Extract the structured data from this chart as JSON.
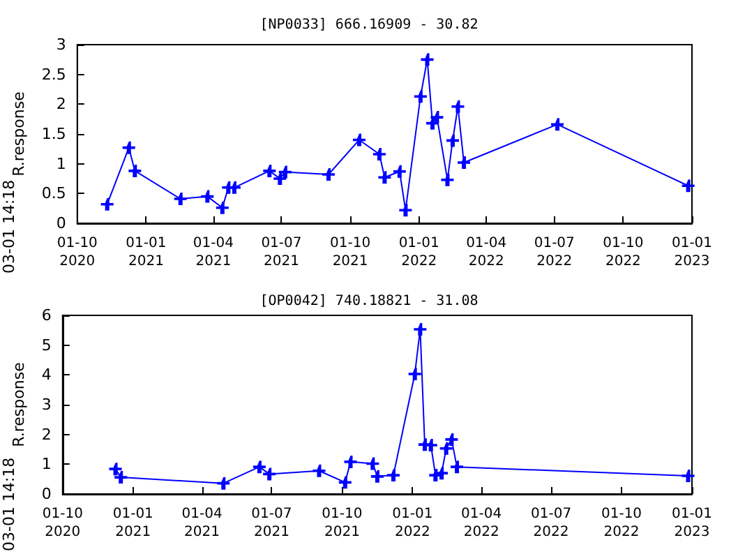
{
  "chart_data": [
    {
      "type": "line",
      "title": "[NP0033] 666.16909 - 30.82",
      "ylabel": "R.response",
      "annotations": [
        "03-01 14:18"
      ],
      "marker": "cross",
      "line_style": "solid",
      "x": [
        "2020-11-10",
        "2020-12-09",
        "2020-12-17",
        "2021-02-16",
        "2021-03-24",
        "2021-04-13",
        "2021-04-21",
        "2021-04-29",
        "2021-06-15",
        "2021-06-29",
        "2021-07-06",
        "2021-09-02",
        "2021-10-13",
        "2021-11-09",
        "2021-11-16",
        "2021-12-06",
        "2021-12-14",
        "2022-01-03",
        "2022-01-12",
        "2022-01-19",
        "2022-01-25",
        "2022-02-08",
        "2022-02-15",
        "2022-02-22",
        "2022-03-02",
        "2022-07-05",
        "2022-12-27"
      ],
      "series": [
        {
          "color": "#0000ff",
          "values": [
            0.32,
            1.27,
            0.88,
            0.41,
            0.45,
            0.26,
            0.6,
            0.6,
            0.88,
            0.75,
            0.86,
            0.82,
            1.4,
            1.16,
            0.77,
            0.87,
            0.22,
            2.13,
            2.75,
            1.68,
            1.78,
            0.73,
            1.39,
            1.96,
            1.02,
            1.66,
            0.63
          ]
        }
      ],
      "xlim": [
        "2020-10-01",
        "2023-01-01"
      ],
      "xticks": [
        {
          "value": "2020-10-01",
          "label": "01-10\n2020"
        },
        {
          "value": "2021-01-01",
          "label": "01-01\n2021"
        },
        {
          "value": "2021-04-01",
          "label": "01-04\n2021"
        },
        {
          "value": "2021-07-01",
          "label": "01-07\n2021"
        },
        {
          "value": "2021-10-01",
          "label": "01-10\n2021"
        },
        {
          "value": "2022-01-01",
          "label": "01-01\n2022"
        },
        {
          "value": "2022-04-01",
          "label": "01-04\n2022"
        },
        {
          "value": "2022-07-01",
          "label": "01-07\n2022"
        },
        {
          "value": "2022-10-01",
          "label": "01-10\n2022"
        },
        {
          "value": "2023-01-01",
          "label": "01-01\n2023"
        }
      ],
      "ylim": [
        0,
        3
      ],
      "yticks": [
        0,
        0.5,
        1,
        1.5,
        2,
        2.5,
        3
      ]
    },
    {
      "type": "line",
      "title": "[OP0042] 740.18821 - 31.08",
      "ylabel": "R.response",
      "annotations": [
        "03-01 14:18"
      ],
      "marker": "cross",
      "line_style": "solid",
      "x": [
        "2020-12-09",
        "2020-12-16",
        "2021-04-29",
        "2021-06-15",
        "2021-06-28",
        "2021-09-01",
        "2021-10-05",
        "2021-10-12",
        "2021-11-10",
        "2021-11-16",
        "2021-12-07",
        "2022-01-04",
        "2022-01-11",
        "2022-01-17",
        "2022-01-25",
        "2022-01-31",
        "2022-02-08",
        "2022-02-14",
        "2022-02-21",
        "2022-02-28",
        "2022-12-27"
      ],
      "series": [
        {
          "color": "#0000ff",
          "values": [
            0.84,
            0.56,
            0.36,
            0.91,
            0.67,
            0.78,
            0.39,
            1.08,
            1.02,
            0.59,
            0.63,
            4.03,
            5.53,
            1.66,
            1.64,
            0.63,
            0.7,
            1.53,
            1.83,
            0.91,
            0.61
          ]
        }
      ],
      "xlim": [
        "2020-10-01",
        "2023-01-01"
      ],
      "xticks": [
        {
          "value": "2020-10-01",
          "label": "01-10\n2020"
        },
        {
          "value": "2021-01-01",
          "label": "01-01\n2021"
        },
        {
          "value": "2021-04-01",
          "label": "01-04\n2021"
        },
        {
          "value": "2021-07-01",
          "label": "01-07\n2021"
        },
        {
          "value": "2021-10-01",
          "label": "01-10\n2021"
        },
        {
          "value": "2022-01-01",
          "label": "01-01\n2022"
        },
        {
          "value": "2022-04-01",
          "label": "01-04\n2022"
        },
        {
          "value": "2022-07-01",
          "label": "01-07\n2022"
        },
        {
          "value": "2022-10-01",
          "label": "01-10\n2022"
        },
        {
          "value": "2023-01-01",
          "label": "01-01\n2023"
        }
      ],
      "ylim": [
        0,
        6
      ],
      "yticks": [
        0,
        1,
        2,
        3,
        4,
        5,
        6
      ]
    }
  ]
}
